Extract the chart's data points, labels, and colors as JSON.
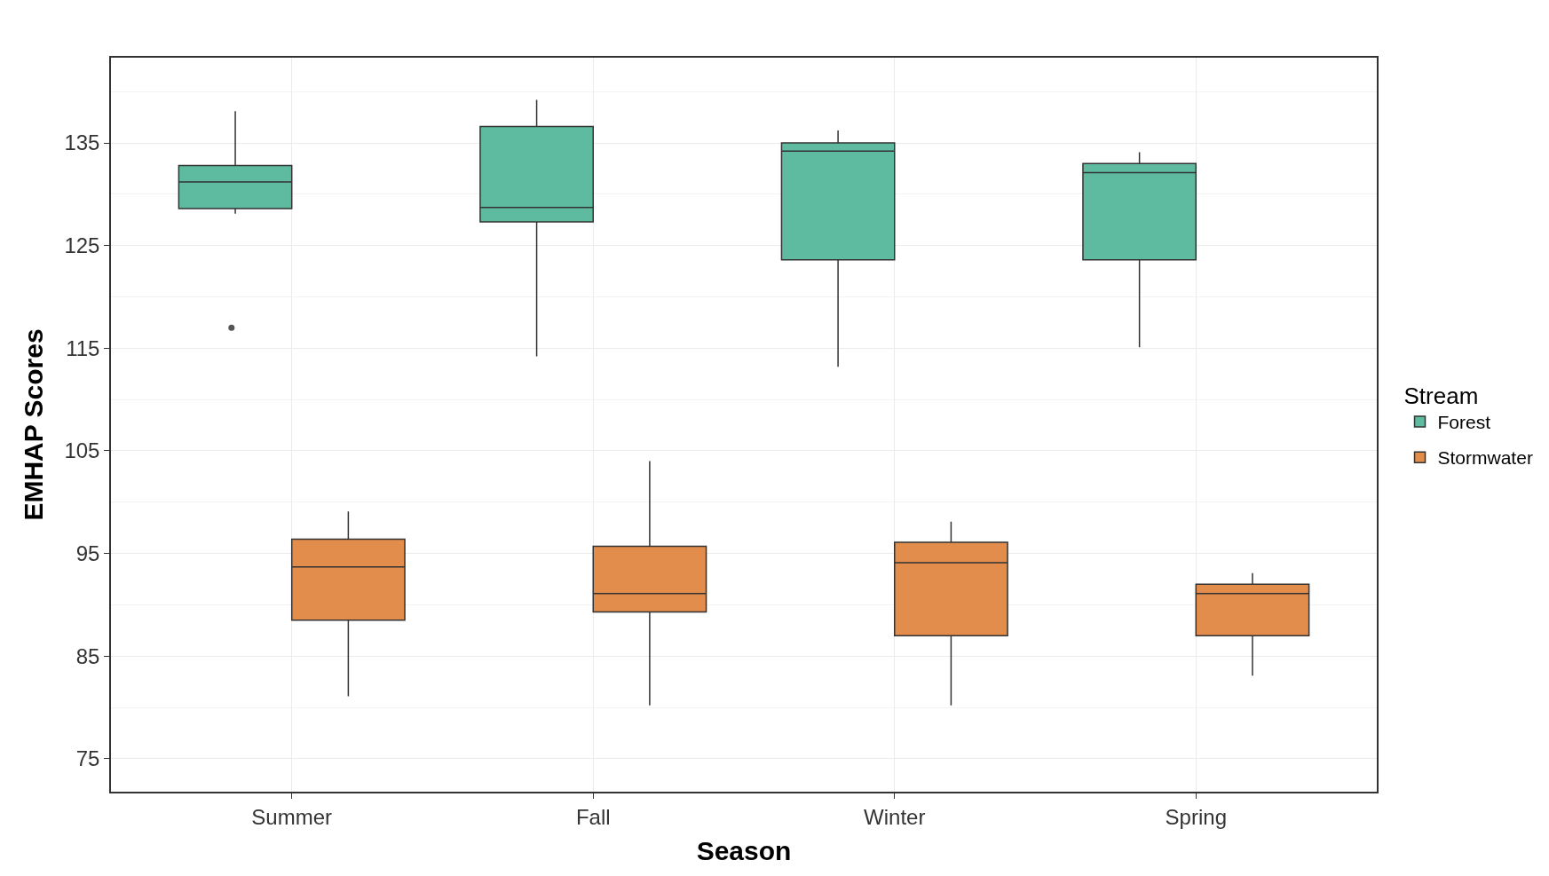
{
  "chart_data": {
    "type": "box",
    "xlabel": "Season",
    "ylabel": "EMHAP Scores",
    "legend_title": "Stream",
    "categories": [
      "Summer",
      "Fall",
      "Winter",
      "Spring"
    ],
    "series": [
      {
        "name": "Forest",
        "color": "#5fbb9f",
        "boxes": [
          {
            "low": 128.1,
            "q1": 128.6,
            "median": 131.2,
            "q3": 132.8,
            "high": 138.1,
            "outliers": [
              117
            ]
          },
          {
            "low": 114.2,
            "q1": 127.3,
            "median": 128.7,
            "q3": 136.6,
            "high": 139.2
          },
          {
            "low": 113.2,
            "q1": 123.6,
            "median": 134.2,
            "q3": 135,
            "high": 136.2
          },
          {
            "low": 115.1,
            "q1": 123.6,
            "median": 132.1,
            "q3": 133,
            "high": 134.1
          }
        ]
      },
      {
        "name": "Stormwater",
        "color": "#e38d4c",
        "boxes": [
          {
            "low": 81.1,
            "q1": 88.5,
            "median": 93.7,
            "q3": 96.4,
            "high": 99.1
          },
          {
            "low": 80.2,
            "q1": 89.3,
            "median": 91.1,
            "q3": 95.7,
            "high": 104
          },
          {
            "low": 80.2,
            "q1": 87,
            "median": 94.1,
            "q3": 96.1,
            "high": 98.1
          },
          {
            "low": 83.1,
            "q1": 87,
            "median": 91.1,
            "q3": 92,
            "high": 93.1
          }
        ]
      }
    ],
    "ylim": [
      71.8,
      143.3
    ],
    "yticks": [
      75,
      85,
      95,
      105,
      115,
      125,
      135
    ],
    "grid": true,
    "legend": "right"
  }
}
